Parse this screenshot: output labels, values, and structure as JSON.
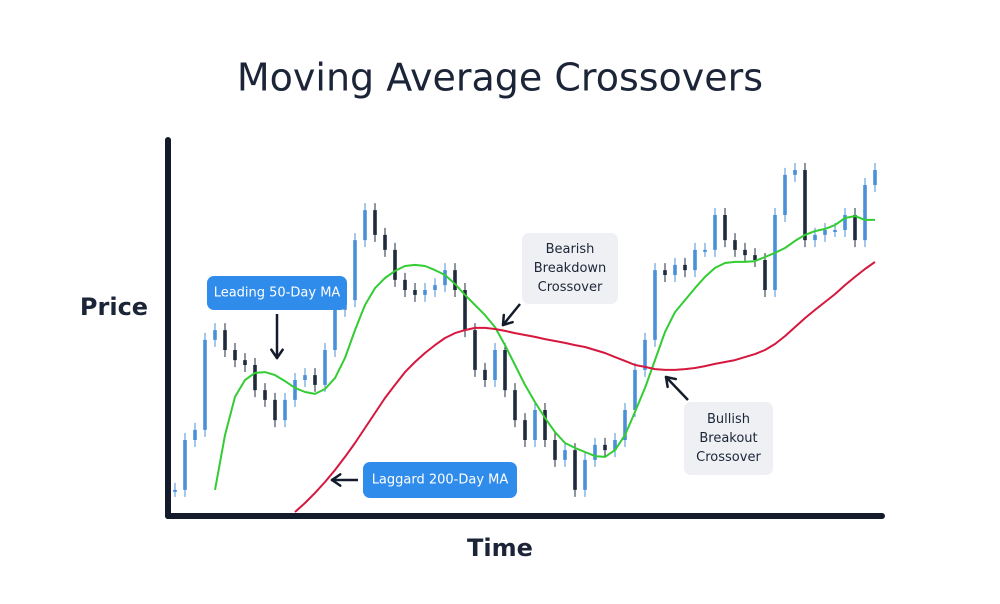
{
  "chart_data": {
    "type": "candlestick",
    "title": "Moving Average Crossovers",
    "y_label": "Price",
    "x_label": "Time",
    "ylim": [
      0,
      100
    ],
    "price": {
      "up_color": "#4a90d9",
      "down_color": "#1f2a3c",
      "values": [
        6.7,
        20,
        22.7,
        46.7,
        49.3,
        44,
        41.3,
        40,
        33.3,
        30.7,
        25.3,
        30.7,
        36,
        37.3,
        34.7,
        44,
        54.7,
        57.3,
        73.3,
        81.3,
        74.7,
        70.7,
        62.7,
        60,
        58.7,
        60,
        61.3,
        65.3,
        60,
        49.3,
        38.7,
        36,
        44,
        33.3,
        25.3,
        20,
        28,
        20,
        14.7,
        17.3,
        6.7,
        14.7,
        18.7,
        17.3,
        20,
        28,
        38.7,
        46.7,
        65.3,
        64,
        66.7,
        65.3,
        70.7,
        70.7,
        80,
        73.3,
        70.7,
        69.3,
        68,
        60,
        80,
        90.7,
        92,
        73.3,
        74.7,
        76,
        76,
        80,
        73.3,
        88,
        92
      ]
    },
    "series": [
      {
        "color": "#33cc33",
        "values": [
          null,
          null,
          null,
          null,
          6.7,
          21.3,
          31.5,
          36,
          37.9,
          38.1,
          37.3,
          35.7,
          33.9,
          32.8,
          32.3,
          33.6,
          36.5,
          41.9,
          49.3,
          56,
          60.5,
          63.2,
          65.1,
          66.4,
          66.7,
          66.4,
          65.3,
          64,
          61.6,
          58.7,
          56,
          53.3,
          50.1,
          45.3,
          40,
          34.7,
          30.1,
          25.9,
          22.1,
          19.2,
          17.9,
          16.8,
          15.7,
          15.5,
          17.3,
          21.3,
          27.5,
          33.9,
          41.3,
          48.8,
          54.1,
          57.3,
          60.5,
          63.5,
          65.9,
          67.2,
          67.5,
          67.5,
          67.7,
          68.8,
          69.9,
          71.2,
          73.1,
          74.7,
          75.7,
          76.3,
          77.3,
          79.2,
          79.7,
          78.7,
          78.7
        ]
      },
      {
        "color": "#d6173e",
        "values": [
          null,
          null,
          null,
          null,
          null,
          null,
          null,
          null,
          null,
          null,
          null,
          null,
          0.8,
          3.2,
          5.9,
          8.8,
          12,
          15.5,
          19.2,
          23.2,
          27.2,
          31.2,
          34.7,
          38.1,
          40.8,
          43.2,
          45.3,
          47.2,
          48.5,
          49.3,
          49.9,
          49.9,
          49.6,
          49.1,
          48.5,
          48,
          47.5,
          46.9,
          46.4,
          45.9,
          45.3,
          44.8,
          44,
          43.2,
          42.1,
          41.1,
          40,
          39.5,
          38.9,
          38.7,
          38.7,
          38.9,
          39.2,
          39.7,
          40.3,
          40.8,
          41.3,
          42.1,
          42.9,
          44,
          45.6,
          47.7,
          50.1,
          52.5,
          54.7,
          56.8,
          58.9,
          61.3,
          63.5,
          65.6,
          67.5
        ]
      }
    ],
    "annotations": [
      {
        "text": [
          "Leading 50-Day MA"
        ],
        "color": "#2f8ceb"
      },
      {
        "text": [
          "Bearish",
          "Breakdown",
          "Crossover"
        ],
        "color": "#eef0f3"
      },
      {
        "text": [
          "Laggard 200-Day MA"
        ],
        "color": "#2f8ceb"
      },
      {
        "text": [
          "Bullish",
          "Breakout",
          "Crossover"
        ],
        "color": "#eef0f3"
      }
    ]
  }
}
